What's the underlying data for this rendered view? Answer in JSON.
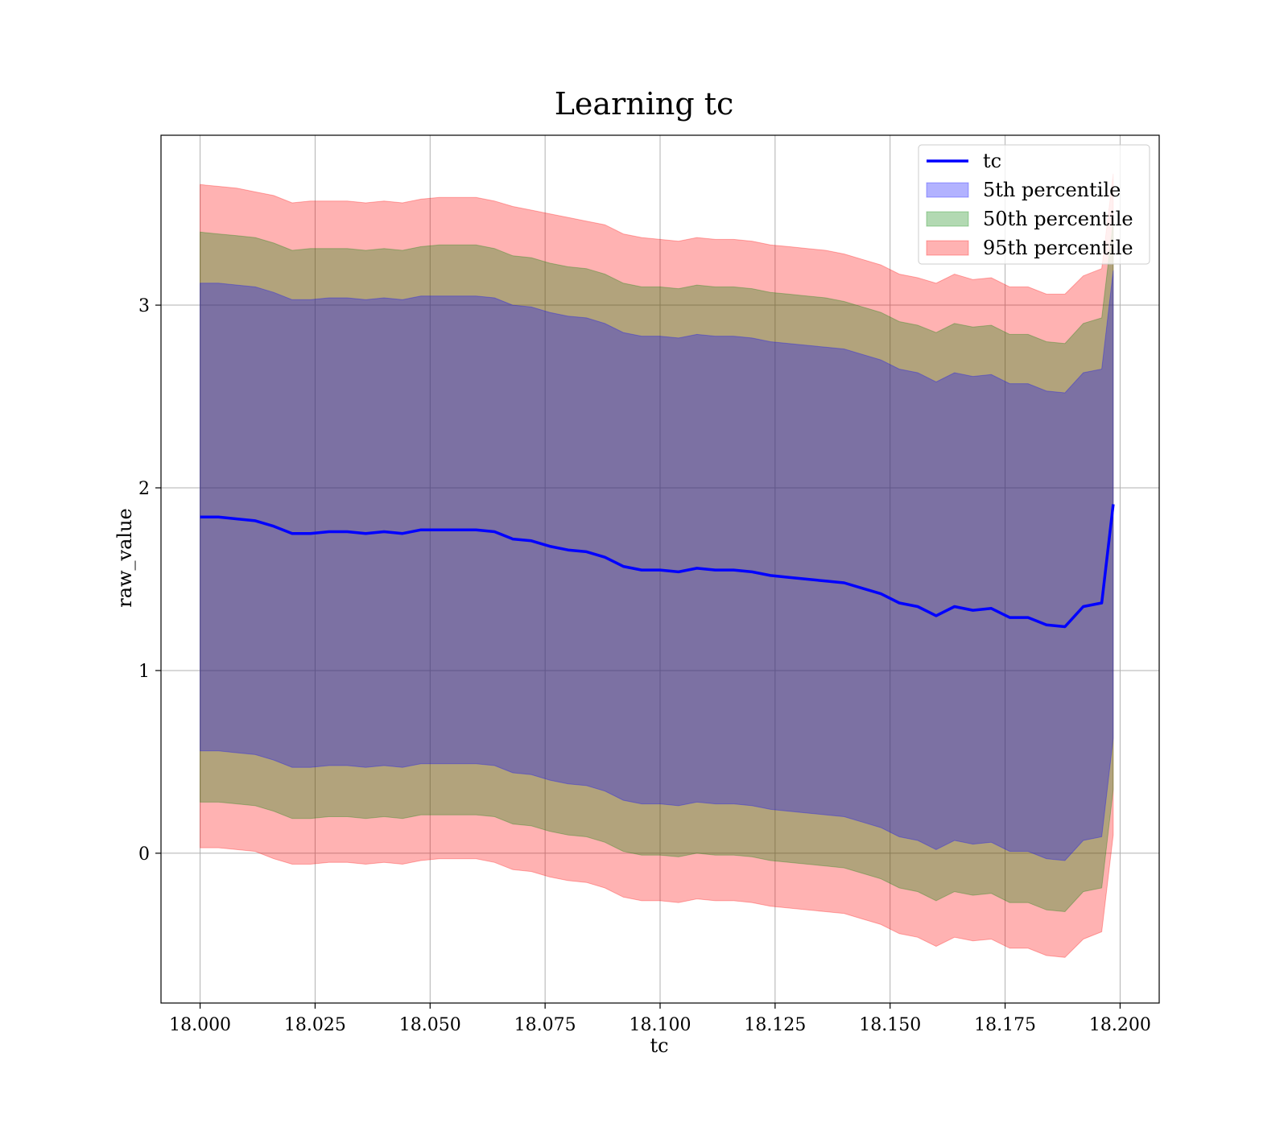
{
  "chart_data": {
    "type": "area",
    "title": "Learning tc",
    "xlabel": "tc",
    "ylabel": "raw_value",
    "xlim": [
      17.9915,
      18.2085
    ],
    "ylim": [
      -0.82,
      3.93
    ],
    "x_ticks": [
      18.0,
      18.025,
      18.05,
      18.075,
      18.1,
      18.125,
      18.15,
      18.175,
      18.2
    ],
    "x_tick_labels": [
      "18.000",
      "18.025",
      "18.050",
      "18.075",
      "18.100",
      "18.125",
      "18.150",
      "18.175",
      "18.200"
    ],
    "y_ticks": [
      0,
      1,
      2,
      3
    ],
    "y_tick_labels": [
      "0",
      "1",
      "2",
      "3"
    ],
    "grid": true,
    "legend_position": "top-right",
    "legend": [
      {
        "label": "tc",
        "kind": "line",
        "color": "#0000ff"
      },
      {
        "label": "5th percentile",
        "kind": "patch",
        "color": "#0000ff"
      },
      {
        "label": "50th percentile",
        "kind": "patch",
        "color": "#008000"
      },
      {
        "label": "95th percentile",
        "kind": "patch",
        "color": "#ff0000"
      }
    ],
    "x": [
      18.0,
      18.004,
      18.008,
      18.012,
      18.016,
      18.02,
      18.024,
      18.028,
      18.032,
      18.036,
      18.04,
      18.044,
      18.048,
      18.052,
      18.056,
      18.06,
      18.064,
      18.068,
      18.072,
      18.076,
      18.08,
      18.084,
      18.088,
      18.092,
      18.096,
      18.1,
      18.104,
      18.108,
      18.112,
      18.116,
      18.12,
      18.124,
      18.128,
      18.132,
      18.136,
      18.14,
      18.144,
      18.148,
      18.152,
      18.156,
      18.16,
      18.164,
      18.168,
      18.172,
      18.176,
      18.18,
      18.184,
      18.188,
      18.192,
      18.196,
      18.1985
    ],
    "series": [
      {
        "name": "tc",
        "kind": "line",
        "color": "#0000ff",
        "values": [
          1.84,
          1.84,
          1.83,
          1.82,
          1.79,
          1.75,
          1.75,
          1.76,
          1.76,
          1.75,
          1.76,
          1.75,
          1.77,
          1.77,
          1.77,
          1.77,
          1.76,
          1.72,
          1.71,
          1.68,
          1.66,
          1.65,
          1.62,
          1.57,
          1.55,
          1.55,
          1.54,
          1.56,
          1.55,
          1.55,
          1.54,
          1.52,
          1.51,
          1.5,
          1.49,
          1.48,
          1.45,
          1.42,
          1.37,
          1.35,
          1.3,
          1.35,
          1.33,
          1.34,
          1.29,
          1.29,
          1.25,
          1.24,
          1.35,
          1.37,
          1.91
        ]
      }
    ],
    "bands": [
      {
        "name": "95th percentile",
        "color": "#ff0000",
        "alpha": 0.3,
        "upper": [
          3.66,
          3.65,
          3.64,
          3.62,
          3.6,
          3.56,
          3.57,
          3.57,
          3.57,
          3.56,
          3.57,
          3.56,
          3.58,
          3.59,
          3.59,
          3.59,
          3.57,
          3.54,
          3.52,
          3.5,
          3.48,
          3.46,
          3.44,
          3.39,
          3.37,
          3.36,
          3.35,
          3.37,
          3.36,
          3.36,
          3.35,
          3.33,
          3.32,
          3.31,
          3.3,
          3.28,
          3.25,
          3.22,
          3.17,
          3.15,
          3.12,
          3.17,
          3.14,
          3.15,
          3.1,
          3.1,
          3.06,
          3.06,
          3.16,
          3.2,
          3.72
        ],
        "lower": [
          0.03,
          0.03,
          0.02,
          0.01,
          -0.03,
          -0.06,
          -0.06,
          -0.05,
          -0.05,
          -0.06,
          -0.05,
          -0.06,
          -0.04,
          -0.03,
          -0.03,
          -0.03,
          -0.05,
          -0.09,
          -0.1,
          -0.13,
          -0.15,
          -0.16,
          -0.19,
          -0.24,
          -0.26,
          -0.26,
          -0.27,
          -0.25,
          -0.26,
          -0.26,
          -0.27,
          -0.29,
          -0.3,
          -0.31,
          -0.32,
          -0.33,
          -0.36,
          -0.39,
          -0.44,
          -0.46,
          -0.51,
          -0.46,
          -0.48,
          -0.47,
          -0.52,
          -0.52,
          -0.56,
          -0.57,
          -0.47,
          -0.43,
          0.1
        ]
      },
      {
        "name": "50th percentile",
        "color": "#008000",
        "alpha": 0.3,
        "upper": [
          3.4,
          3.39,
          3.38,
          3.37,
          3.34,
          3.3,
          3.31,
          3.31,
          3.31,
          3.3,
          3.31,
          3.3,
          3.32,
          3.33,
          3.33,
          3.33,
          3.31,
          3.27,
          3.26,
          3.23,
          3.21,
          3.2,
          3.17,
          3.12,
          3.1,
          3.1,
          3.09,
          3.11,
          3.1,
          3.1,
          3.09,
          3.07,
          3.06,
          3.05,
          3.04,
          3.02,
          2.99,
          2.96,
          2.91,
          2.89,
          2.85,
          2.9,
          2.88,
          2.89,
          2.84,
          2.84,
          2.8,
          2.79,
          2.9,
          2.93,
          3.46
        ],
        "lower": [
          0.28,
          0.28,
          0.27,
          0.26,
          0.23,
          0.19,
          0.19,
          0.2,
          0.2,
          0.19,
          0.2,
          0.19,
          0.21,
          0.21,
          0.21,
          0.21,
          0.2,
          0.16,
          0.15,
          0.12,
          0.1,
          0.09,
          0.06,
          0.01,
          -0.01,
          -0.01,
          -0.02,
          0.0,
          -0.01,
          -0.01,
          -0.02,
          -0.04,
          -0.05,
          -0.06,
          -0.07,
          -0.08,
          -0.11,
          -0.14,
          -0.19,
          -0.21,
          -0.26,
          -0.21,
          -0.23,
          -0.22,
          -0.27,
          -0.27,
          -0.31,
          -0.32,
          -0.21,
          -0.19,
          0.35
        ]
      },
      {
        "name": "5th percentile",
        "color": "#0000ff",
        "alpha": 0.3,
        "upper": [
          3.12,
          3.12,
          3.11,
          3.1,
          3.07,
          3.03,
          3.03,
          3.04,
          3.04,
          3.03,
          3.04,
          3.03,
          3.05,
          3.05,
          3.05,
          3.05,
          3.04,
          3.0,
          2.99,
          2.96,
          2.94,
          2.93,
          2.9,
          2.85,
          2.83,
          2.83,
          2.82,
          2.84,
          2.83,
          2.83,
          2.82,
          2.8,
          2.79,
          2.78,
          2.77,
          2.76,
          2.73,
          2.7,
          2.65,
          2.63,
          2.58,
          2.63,
          2.61,
          2.62,
          2.57,
          2.57,
          2.53,
          2.52,
          2.63,
          2.65,
          3.19
        ],
        "lower": [
          0.56,
          0.56,
          0.55,
          0.54,
          0.51,
          0.47,
          0.47,
          0.48,
          0.48,
          0.47,
          0.48,
          0.47,
          0.49,
          0.49,
          0.49,
          0.49,
          0.48,
          0.44,
          0.43,
          0.4,
          0.38,
          0.37,
          0.34,
          0.29,
          0.27,
          0.27,
          0.26,
          0.28,
          0.27,
          0.27,
          0.26,
          0.24,
          0.23,
          0.22,
          0.21,
          0.2,
          0.17,
          0.14,
          0.09,
          0.07,
          0.02,
          0.07,
          0.05,
          0.06,
          0.01,
          0.01,
          -0.03,
          -0.04,
          0.07,
          0.09,
          0.63
        ]
      }
    ]
  }
}
